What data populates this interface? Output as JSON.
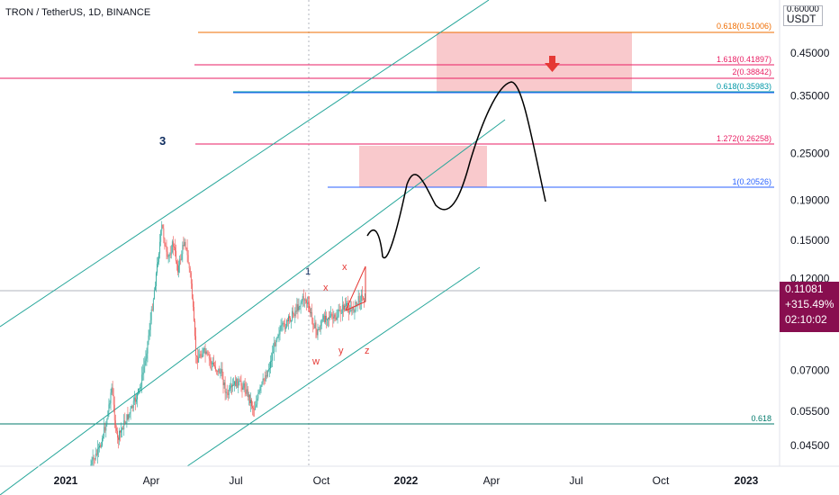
{
  "header": {
    "title": "TRON / TetherUS, 1D, BINANCE",
    "currency_top": "0.60000",
    "currency": "USDT"
  },
  "price_badge": {
    "price": "0.11081",
    "change": "+315.49%",
    "countdown": "02:10:02"
  },
  "chart_data": {
    "type": "line",
    "scale": "log",
    "ylim": [
      0.037,
      0.62
    ],
    "x_ticks": [
      "2021",
      "Apr",
      "Jul",
      "Oct",
      "2022",
      "Apr",
      "Jul",
      "Oct",
      "2023"
    ],
    "x_ticks_bold": [
      "2021",
      "2022",
      "2023"
    ],
    "y_ticks": [
      0.45,
      0.35,
      0.25,
      0.19,
      0.15,
      0.12,
      0.07,
      0.055,
      0.045
    ],
    "y_tick_labels": [
      "0.45000",
      "0.35000",
      "0.25000",
      "0.19000",
      "0.15000",
      "0.12000",
      "0.07000",
      "0.05500",
      "0.04500"
    ],
    "current_price": 0.11081,
    "fib_levels": [
      {
        "label": "0.618(0.51006)",
        "value": 0.51006,
        "color": "#ef6c00"
      },
      {
        "label": "1.618(0.41897)",
        "value": 0.41897,
        "color": "#e91e63"
      },
      {
        "label": "2(0.38842)",
        "value": 0.38842,
        "color": "#e91e63"
      },
      {
        "label": "0.618(0.35983)",
        "value": 0.35983,
        "color": "#0097a7"
      },
      {
        "label": "1.272(0.26258)",
        "value": 0.26258,
        "color": "#e91e63"
      },
      {
        "label": "1(0.20526)",
        "value": 0.20526,
        "color": "#2962ff"
      },
      {
        "label": "0.618",
        "value": 0.0515,
        "color": "#00796b"
      }
    ],
    "annotations": {
      "wave_3": "3",
      "wave_1": "1",
      "wave_x_upper": "x",
      "wave_x_lower": "x",
      "wave_w": "w",
      "wave_y": "y",
      "wave_z": "z"
    },
    "colors": {
      "channel": "#26a69a",
      "zone": "#f8bbbf",
      "arrow": "#e53935",
      "candle_up": "#26a69a",
      "candle_down": "#ef5350",
      "projection": "#000000",
      "wave_red": "#e53935",
      "wave_navy": "#0d2b5e"
    }
  }
}
